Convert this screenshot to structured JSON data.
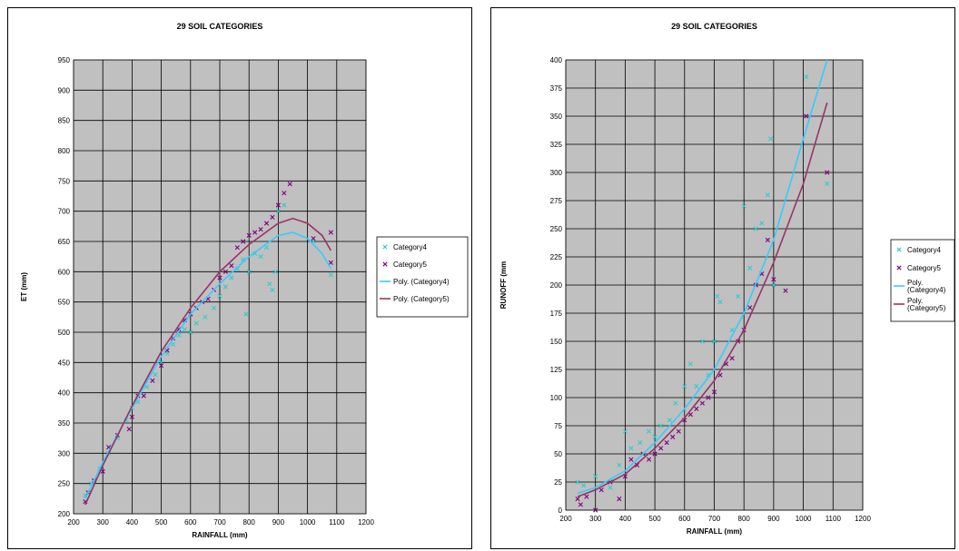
{
  "chart_data": [
    {
      "type": "scatter",
      "title": "29 SOIL CATEGORIES",
      "xlabel": "RAINFALL (mm)",
      "ylabel": "ET (mm)",
      "xlim": [
        200,
        1200
      ],
      "ylim": [
        200,
        950
      ],
      "xticks": [
        200,
        300,
        400,
        500,
        600,
        700,
        800,
        900,
        1000,
        1100,
        1200
      ],
      "yticks": [
        200,
        250,
        300,
        350,
        400,
        450,
        500,
        550,
        600,
        650,
        700,
        750,
        800,
        850,
        900,
        950
      ],
      "grid": true,
      "legend_position": "right",
      "legend": [
        "Category4",
        "Category5",
        "Poly. (Category4)",
        "Poly. (Category5)"
      ],
      "plot_background": "#c0c0c0",
      "series": [
        {
          "name": "Category4",
          "marker": "x",
          "color": "#33cccc",
          "points": [
            [
              240,
              230
            ],
            [
              260,
              250
            ],
            [
              290,
              275
            ],
            [
              320,
              300
            ],
            [
              350,
              325
            ],
            [
              380,
              355
            ],
            [
              400,
              375
            ],
            [
              420,
              385
            ],
            [
              450,
              410
            ],
            [
              480,
              430
            ],
            [
              500,
              450
            ],
            [
              520,
              465
            ],
            [
              540,
              480
            ],
            [
              560,
              495
            ],
            [
              580,
              505
            ],
            [
              600,
              500
            ],
            [
              620,
              515
            ],
            [
              650,
              525
            ],
            [
              680,
              540
            ],
            [
              700,
              560
            ],
            [
              720,
              575
            ],
            [
              740,
              590
            ],
            [
              760,
              605
            ],
            [
              780,
              620
            ],
            [
              790,
              530
            ],
            [
              800,
              600
            ],
            [
              820,
              630
            ],
            [
              840,
              625
            ],
            [
              860,
              640
            ],
            [
              870,
              580
            ],
            [
              880,
              570
            ],
            [
              890,
              600
            ],
            [
              900,
              700
            ],
            [
              920,
              710
            ],
            [
              1020,
              650
            ],
            [
              1080,
              595
            ]
          ]
        },
        {
          "name": "Category5",
          "marker": "x",
          "color": "#800080",
          "points": [
            [
              240,
              220
            ],
            [
              250,
              235
            ],
            [
              270,
              255
            ],
            [
              300,
              270
            ],
            [
              320,
              310
            ],
            [
              350,
              330
            ],
            [
              390,
              340
            ],
            [
              400,
              360
            ],
            [
              420,
              395
            ],
            [
              440,
              395
            ],
            [
              470,
              420
            ],
            [
              500,
              445
            ],
            [
              520,
              470
            ],
            [
              540,
              490
            ],
            [
              560,
              505
            ],
            [
              580,
              520
            ],
            [
              600,
              530
            ],
            [
              620,
              540
            ],
            [
              640,
              550
            ],
            [
              660,
              555
            ],
            [
              680,
              570
            ],
            [
              700,
              590
            ],
            [
              720,
              600
            ],
            [
              740,
              610
            ],
            [
              760,
              640
            ],
            [
              780,
              650
            ],
            [
              800,
              660
            ],
            [
              820,
              665
            ],
            [
              840,
              670
            ],
            [
              860,
              680
            ],
            [
              880,
              690
            ],
            [
              900,
              710
            ],
            [
              920,
              730
            ],
            [
              940,
              745
            ],
            [
              1020,
              655
            ],
            [
              1080,
              665
            ],
            [
              1080,
              615
            ]
          ]
        },
        {
          "name": "Poly. (Category4)",
          "type": "line",
          "color": "#33ccff",
          "x": [
            240,
            300,
            400,
            500,
            600,
            700,
            800,
            900,
            950,
            1000,
            1050,
            1080
          ],
          "y": [
            225,
            285,
            375,
            460,
            530,
            580,
            625,
            660,
            665,
            655,
            630,
            605
          ]
        },
        {
          "name": "Poly. (Category5)",
          "type": "line",
          "color": "#993366",
          "x": [
            240,
            300,
            400,
            500,
            600,
            700,
            800,
            900,
            950,
            1000,
            1050,
            1080
          ],
          "y": [
            215,
            280,
            378,
            468,
            540,
            600,
            645,
            680,
            688,
            680,
            660,
            635
          ]
        }
      ]
    },
    {
      "type": "scatter",
      "title": "29 SOIL CATEGORIES",
      "xlabel": "RAINFALL (mm)",
      "ylabel": "RUNOFF (mm",
      "xlim": [
        200,
        1200
      ],
      "ylim": [
        0,
        400
      ],
      "xticks": [
        200,
        300,
        400,
        500,
        600,
        700,
        800,
        900,
        1000,
        1100,
        1200
      ],
      "yticks": [
        0,
        25,
        50,
        75,
        100,
        125,
        150,
        175,
        200,
        225,
        250,
        275,
        300,
        325,
        350,
        375,
        400
      ],
      "grid": true,
      "legend_position": "right",
      "legend": [
        "Category4",
        "Category5",
        "Poly. (Category4)",
        "Poly. (Category5)"
      ],
      "plot_background": "#c0c0c0",
      "series": [
        {
          "name": "Category4",
          "marker": "x",
          "color": "#33cccc",
          "points": [
            [
              240,
              25
            ],
            [
              260,
              22
            ],
            [
              300,
              30
            ],
            [
              350,
              20
            ],
            [
              380,
              40
            ],
            [
              400,
              70
            ],
            [
              420,
              55
            ],
            [
              450,
              60
            ],
            [
              480,
              70
            ],
            [
              500,
              65
            ],
            [
              520,
              75
            ],
            [
              550,
              80
            ],
            [
              570,
              95
            ],
            [
              600,
              110
            ],
            [
              620,
              130
            ],
            [
              640,
              110
            ],
            [
              660,
              150
            ],
            [
              680,
              120
            ],
            [
              700,
              150
            ],
            [
              710,
              190
            ],
            [
              720,
              185
            ],
            [
              740,
              130
            ],
            [
              760,
              160
            ],
            [
              780,
              190
            ],
            [
              800,
              270
            ],
            [
              820,
              215
            ],
            [
              840,
              250
            ],
            [
              860,
              255
            ],
            [
              880,
              280
            ],
            [
              890,
              330
            ],
            [
              900,
              200
            ],
            [
              1010,
              385
            ],
            [
              1080,
              290
            ]
          ]
        },
        {
          "name": "Category5",
          "marker": "x",
          "color": "#800080",
          "points": [
            [
              240,
              10
            ],
            [
              250,
              5
            ],
            [
              270,
              12
            ],
            [
              300,
              0
            ],
            [
              320,
              18
            ],
            [
              350,
              25
            ],
            [
              380,
              10
            ],
            [
              400,
              30
            ],
            [
              420,
              45
            ],
            [
              440,
              40
            ],
            [
              460,
              50
            ],
            [
              480,
              45
            ],
            [
              500,
              50
            ],
            [
              520,
              55
            ],
            [
              540,
              60
            ],
            [
              560,
              65
            ],
            [
              580,
              70
            ],
            [
              600,
              80
            ],
            [
              620,
              85
            ],
            [
              640,
              90
            ],
            [
              660,
              95
            ],
            [
              680,
              100
            ],
            [
              700,
              105
            ],
            [
              720,
              120
            ],
            [
              740,
              130
            ],
            [
              760,
              135
            ],
            [
              780,
              150
            ],
            [
              800,
              160
            ],
            [
              820,
              180
            ],
            [
              840,
              200
            ],
            [
              860,
              210
            ],
            [
              880,
              240
            ],
            [
              900,
              205
            ],
            [
              940,
              195
            ],
            [
              1010,
              350
            ],
            [
              1080,
              300
            ]
          ]
        },
        {
          "name": "Poly. (Category4)",
          "type": "line",
          "color": "#33ccff",
          "x": [
            240,
            300,
            400,
            500,
            600,
            700,
            800,
            900,
            1000,
            1080
          ],
          "y": [
            15,
            20,
            35,
            60,
            90,
            125,
            175,
            240,
            330,
            400
          ]
        },
        {
          "name": "Poly. (Category5)",
          "type": "line",
          "color": "#993366",
          "x": [
            240,
            300,
            400,
            500,
            600,
            700,
            800,
            900,
            1000,
            1080
          ],
          "y": [
            12,
            18,
            32,
            55,
            82,
            115,
            160,
            220,
            290,
            362
          ]
        }
      ]
    }
  ]
}
